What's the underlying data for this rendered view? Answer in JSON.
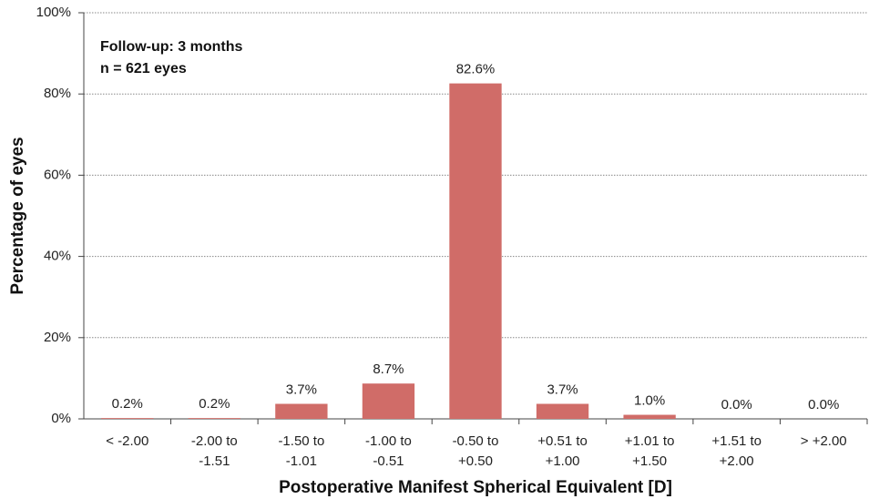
{
  "chart_data": {
    "type": "bar",
    "x_label": "Postoperative Manifest Spherical Equivalent [D]",
    "y_label": "Percentage of eyes",
    "annotations": [
      "Follow-up: 3 months",
      "n = 621 eyes"
    ],
    "categories": [
      "< -2.00",
      "-2.00 to\n-1.51",
      "-1.50 to\n-1.01",
      "-1.00 to\n-0.51",
      "-0.50 to\n+0.50",
      "+0.51 to\n+1.00",
      "+1.01 to\n+1.50",
      "+1.51 to\n+2.00",
      "> +2.00"
    ],
    "values": [
      0.2,
      0.2,
      3.7,
      8.7,
      82.6,
      3.7,
      1.0,
      0.0,
      0.0
    ],
    "value_labels": [
      "0.2%",
      "0.2%",
      "3.7%",
      "8.7%",
      "82.6%",
      "3.7%",
      "1.0%",
      "0.0%",
      "0.0%"
    ],
    "color": "#d06c68",
    "ylim": [
      0,
      100
    ],
    "yticks": [
      {
        "value": 0,
        "label": "0%"
      },
      {
        "value": 20,
        "label": "20%"
      },
      {
        "value": 40,
        "label": "40%"
      },
      {
        "value": 60,
        "label": "60%"
      },
      {
        "value": 80,
        "label": "80%"
      },
      {
        "value": 100,
        "label": "100%"
      }
    ],
    "grid": true
  }
}
